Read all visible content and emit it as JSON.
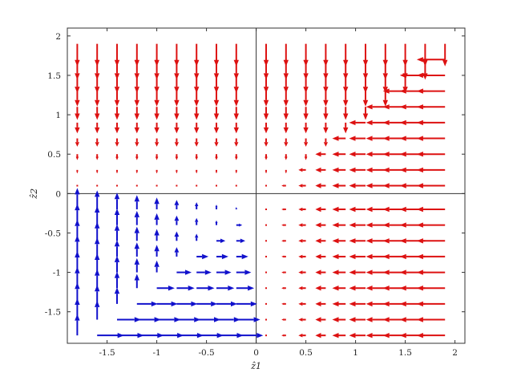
{
  "chart_data": {
    "type": "quiver",
    "xlabel": "ẑ1",
    "ylabel": "ẑ2",
    "xlim": [
      -1.9,
      2.1
    ],
    "ylim": [
      -1.9,
      2.1
    ],
    "xticks": [
      -1.5,
      -1,
      -0.5,
      0,
      0.5,
      1,
      1.5,
      2
    ],
    "xtick_labels": [
      "-1.5",
      "-1",
      "-0.5",
      "0",
      "0.5",
      "1",
      "1.5",
      "2"
    ],
    "yticks": [
      -1.5,
      -1,
      -0.5,
      0,
      0.5,
      1,
      1.5,
      2
    ],
    "ytick_labels": [
      "-1.5",
      "-1",
      "-0.5",
      "0",
      "0.5",
      "1",
      "1.5",
      "2"
    ],
    "grid": false,
    "zero_lines": true,
    "grid_x": [
      -1.8,
      -1.6,
      -1.4,
      -1.2,
      -1.0,
      -0.8,
      -0.6,
      -0.4,
      -0.2,
      0.1,
      0.3,
      0.5,
      0.7,
      0.9,
      1.1,
      1.3,
      1.5,
      1.7,
      1.9
    ],
    "grid_y": [
      -1.8,
      -1.6,
      -1.4,
      -1.2,
      -1.0,
      -0.8,
      -0.6,
      -0.4,
      -0.2,
      0.1,
      0.3,
      0.5,
      0.7,
      0.9,
      1.1,
      1.3,
      1.5,
      1.7,
      1.9
    ],
    "series": [
      {
        "color": "#dd1111",
        "rule": "red field: horizontal arrows pointing left where x > y, vertical arrows pointing down where y >= x; magnitude grows with distance from origin"
      },
      {
        "color": "#1111cc",
        "rule": "blue field in third quadrant: arrows pointing right where y < x, pointing up where x < y; magnitude grows with distance from origin"
      }
    ],
    "arrow_scale": 0.15
  }
}
